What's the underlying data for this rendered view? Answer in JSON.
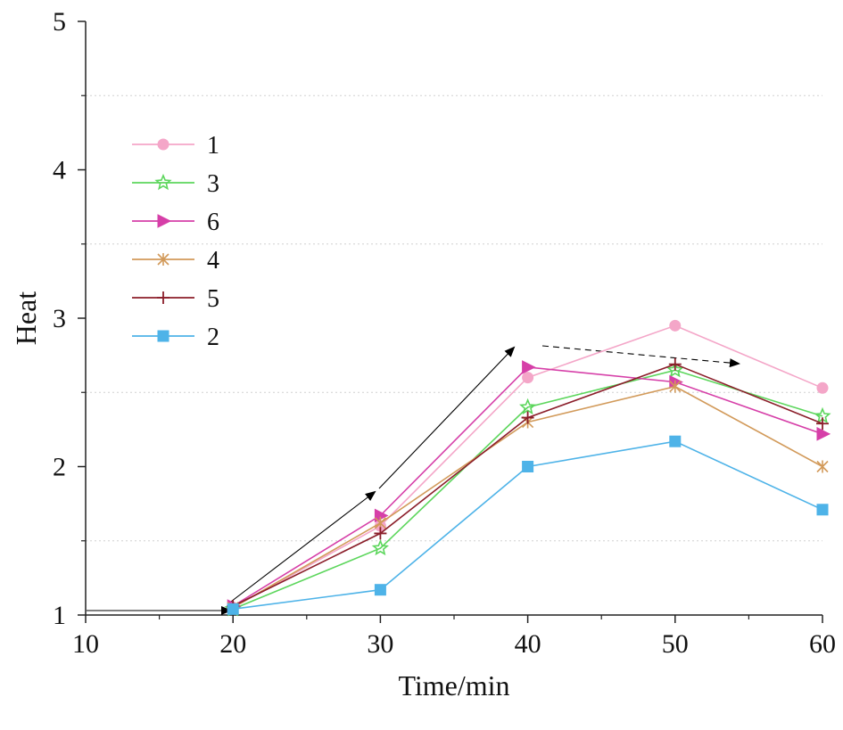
{
  "chart_data": {
    "type": "line",
    "title": "",
    "xlabel": "Time/min",
    "ylabel": "Heat",
    "xlim": [
      10,
      60
    ],
    "ylim": [
      1,
      5
    ],
    "x_ticks": [
      "10",
      "20",
      "30",
      "40",
      "50",
      "60"
    ],
    "y_ticks": [
      "1",
      "2",
      "3",
      "4",
      "5"
    ],
    "x": [
      20,
      30,
      40,
      50,
      60
    ],
    "series": [
      {
        "name": "1",
        "color": "#f4a6c8",
        "marker": "circle",
        "values": [
          1.05,
          1.6,
          2.6,
          2.95,
          2.53
        ]
      },
      {
        "name": "3",
        "color": "#5cd65c",
        "marker": "star",
        "values": [
          1.04,
          1.45,
          2.4,
          2.65,
          2.34
        ]
      },
      {
        "name": "6",
        "color": "#d63fa8",
        "marker": "triangle-right",
        "values": [
          1.06,
          1.67,
          2.67,
          2.57,
          2.22
        ]
      },
      {
        "name": "4",
        "color": "#d29a5a",
        "marker": "x-star",
        "values": [
          1.05,
          1.62,
          2.3,
          2.54,
          2.0
        ]
      },
      {
        "name": "5",
        "color": "#8b1e2a",
        "marker": "plus",
        "values": [
          1.06,
          1.55,
          2.33,
          2.69,
          2.29
        ]
      },
      {
        "name": "2",
        "color": "#4eb3e8",
        "marker": "square",
        "values": [
          1.04,
          1.17,
          2.0,
          2.17,
          1.71
        ]
      }
    ],
    "grid": "dashed horizontal at 1.5, 2.5, 3.5, 4.5",
    "legend": "top-left",
    "annotations": "trend arrows: flat along 1.05 up to 20, rising from 20 to 40, falling slightly after 40"
  }
}
